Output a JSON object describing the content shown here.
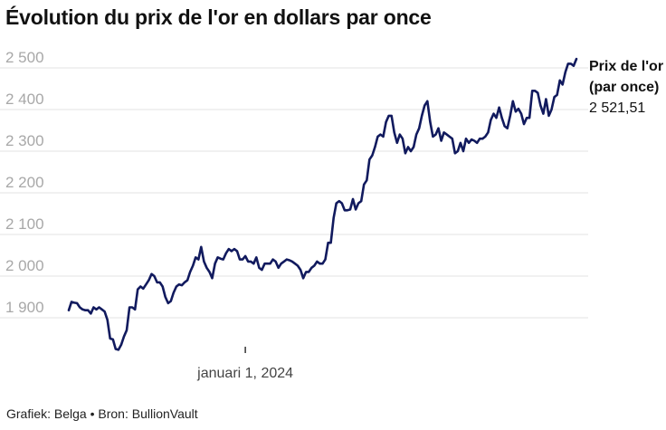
{
  "title": "Évolution du prix de l'or en dollars par once",
  "footer": "Grafiek: Belga • Bron: BullionVault",
  "chart_data": {
    "type": "line",
    "title": "Évolution du prix de l'or en dollars par once",
    "xlabel": "",
    "ylabel": "",
    "ylim": [
      1800,
      2530
    ],
    "xlim": [
      0,
      185
    ],
    "yticks": [
      1900,
      2000,
      2100,
      2200,
      2300,
      2400,
      2500
    ],
    "ytick_labels": [
      "1 900",
      "2 000",
      "2 100",
      "2 200",
      "2 300",
      "2 400",
      "2 500"
    ],
    "xticks": [
      {
        "x": 64,
        "label": "januari 1, 2024"
      }
    ],
    "grid": true,
    "legend": "none",
    "color": "#111a5e",
    "series": [
      {
        "name": "Prix de l'or (par once)",
        "last_value_label": "2 521,51",
        "x": [
          0,
          1,
          2,
          3,
          4,
          5,
          6,
          7,
          8,
          9,
          10,
          11,
          12,
          13,
          14,
          15,
          16,
          17,
          18,
          19,
          20,
          21,
          22,
          23,
          24,
          25,
          26,
          27,
          28,
          29,
          30,
          31,
          32,
          33,
          34,
          35,
          36,
          37,
          38,
          39,
          40,
          41,
          42,
          43,
          44,
          45,
          46,
          47,
          48,
          49,
          50,
          51,
          52,
          53,
          54,
          55,
          56,
          57,
          58,
          59,
          60,
          61,
          62,
          63,
          64,
          65,
          66,
          67,
          68,
          69,
          70,
          71,
          72,
          73,
          74,
          75,
          76,
          77,
          78,
          79,
          80,
          81,
          82,
          83,
          84,
          85,
          86,
          87,
          88,
          89,
          90,
          91,
          92,
          93,
          94,
          95,
          96,
          97,
          98,
          99,
          100,
          101,
          102,
          103,
          104,
          105,
          106,
          107,
          108,
          109,
          110,
          111,
          112,
          113,
          114,
          115,
          116,
          117,
          118,
          119,
          120,
          121,
          122,
          123,
          124,
          125,
          126,
          127,
          128,
          129,
          130,
          131,
          132,
          133,
          134,
          135,
          136,
          137,
          138,
          139,
          140,
          141,
          142,
          143,
          144,
          145,
          146,
          147,
          148,
          149,
          150,
          151,
          152,
          153,
          154,
          155,
          156,
          157,
          158,
          159,
          160,
          161,
          162,
          163,
          164,
          165,
          166,
          167,
          168,
          169,
          170,
          171,
          172,
          173,
          174,
          175,
          176,
          177,
          178,
          179,
          180,
          181,
          182,
          183,
          184
        ],
        "values": [
          1918,
          1938,
          1936,
          1935,
          1925,
          1920,
          1918,
          1918,
          1910,
          1925,
          1920,
          1925,
          1920,
          1915,
          1895,
          1850,
          1848,
          1825,
          1823,
          1835,
          1855,
          1870,
          1925,
          1925,
          1920,
          1968,
          1975,
          1970,
          1980,
          1990,
          2005,
          2000,
          1985,
          1985,
          1975,
          1950,
          1935,
          1940,
          1960,
          1975,
          1980,
          1978,
          1985,
          1990,
          2010,
          2025,
          2045,
          2040,
          2070,
          2035,
          2020,
          2010,
          1995,
          2030,
          2045,
          2042,
          2040,
          2055,
          2065,
          2060,
          2065,
          2060,
          2040,
          2040,
          2048,
          2035,
          2035,
          2030,
          2045,
          2020,
          2015,
          2030,
          2030,
          2030,
          2040,
          2035,
          2020,
          2030,
          2035,
          2040,
          2038,
          2035,
          2030,
          2025,
          2015,
          1995,
          2010,
          2010,
          2020,
          2025,
          2035,
          2030,
          2030,
          2040,
          2080,
          2080,
          2140,
          2175,
          2180,
          2175,
          2158,
          2158,
          2160,
          2185,
          2160,
          2175,
          2180,
          2220,
          2230,
          2280,
          2290,
          2310,
          2335,
          2340,
          2335,
          2370,
          2385,
          2385,
          2345,
          2320,
          2340,
          2330,
          2295,
          2310,
          2300,
          2310,
          2340,
          2355,
          2385,
          2410,
          2420,
          2370,
          2335,
          2340,
          2355,
          2325,
          2345,
          2340,
          2335,
          2330,
          2295,
          2300,
          2320,
          2300,
          2330,
          2320,
          2328,
          2325,
          2320,
          2330,
          2330,
          2335,
          2345,
          2375,
          2390,
          2380,
          2405,
          2380,
          2360,
          2355,
          2385,
          2420,
          2395,
          2402,
          2390,
          2365,
          2380,
          2380,
          2445,
          2445,
          2440,
          2410,
          2390,
          2425,
          2385,
          2400,
          2430,
          2435,
          2470,
          2460,
          2490,
          2510,
          2510,
          2505,
          2521.51
        ]
      }
    ]
  }
}
